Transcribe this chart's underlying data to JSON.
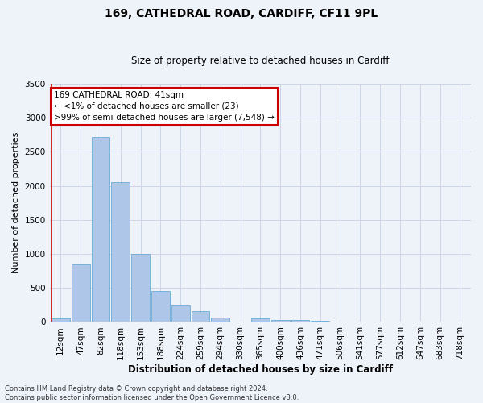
{
  "title": "169, CATHEDRAL ROAD, CARDIFF, CF11 9PL",
  "subtitle": "Size of property relative to detached houses in Cardiff",
  "xlabel": "Distribution of detached houses by size in Cardiff",
  "ylabel": "Number of detached properties",
  "bar_color": "#aec6e8",
  "bar_edge_color": "#6aaad4",
  "background_color": "#eef2f9",
  "categories": [
    "12sqm",
    "47sqm",
    "82sqm",
    "118sqm",
    "153sqm",
    "188sqm",
    "224sqm",
    "259sqm",
    "294sqm",
    "330sqm",
    "365sqm",
    "400sqm",
    "436sqm",
    "471sqm",
    "506sqm",
    "541sqm",
    "577sqm",
    "612sqm",
    "647sqm",
    "683sqm",
    "718sqm"
  ],
  "values": [
    55,
    850,
    2720,
    2060,
    1000,
    450,
    240,
    155,
    65,
    5,
    50,
    35,
    25,
    15,
    5,
    5,
    3,
    3,
    3,
    3,
    3
  ],
  "ylim": [
    0,
    3500
  ],
  "yticks": [
    0,
    500,
    1000,
    1500,
    2000,
    2500,
    3000,
    3500
  ],
  "annotation_text": "169 CATHEDRAL ROAD: 41sqm\n← <1% of detached houses are smaller (23)\n>99% of semi-detached houses are larger (7,548) →",
  "annotation_box_color": "#ffffff",
  "annotation_box_edge_color": "#cc0000",
  "property_bar_color": "#cc0000",
  "footnote": "Contains HM Land Registry data © Crown copyright and database right 2024.\nContains public sector information licensed under the Open Government Licence v3.0.",
  "grid_color": "#cdd5e8",
  "title_fontsize": 10,
  "subtitle_fontsize": 8.5,
  "ylabel_fontsize": 8,
  "xlabel_fontsize": 8.5,
  "tick_fontsize": 7.5,
  "annot_fontsize": 7.5,
  "footnote_fontsize": 6
}
